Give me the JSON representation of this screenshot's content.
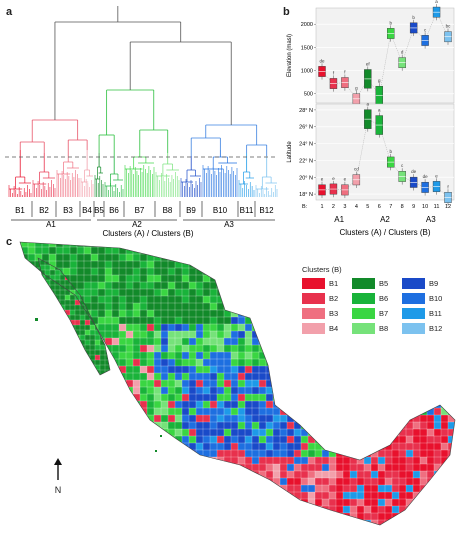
{
  "panels": {
    "a": "a",
    "b": "b",
    "c": "c"
  },
  "dendrogram": {
    "clusters_b": [
      "B1",
      "B2",
      "B3",
      "B4",
      "B5",
      "B6",
      "B7",
      "B8",
      "B9",
      "B10",
      "B11",
      "B12"
    ],
    "clusters_a": [
      "A1",
      "A2",
      "A3"
    ],
    "xlabel": "Clusters (A) / Clusters (B)"
  },
  "chart_data": [
    {
      "type": "box",
      "panel": "b-top",
      "ylabel": "Elevation (masl)",
      "yticks": [
        500,
        1000,
        1500,
        2000
      ],
      "ylim": [
        300,
        2350
      ],
      "x": [
        1,
        2,
        3,
        4,
        5,
        6,
        7,
        8,
        9,
        10,
        11,
        12
      ],
      "medians": [
        980,
        720,
        740,
        390,
        820,
        460,
        1800,
        1170,
        1920,
        1650,
        2260,
        1730
      ],
      "letters": [
        "de",
        "f",
        "f",
        "g",
        "ef",
        "g",
        "b",
        "d",
        "b",
        "c",
        "a",
        "bc"
      ],
      "colors": [
        "#e8112d",
        "#e8314d",
        "#ef6f80",
        "#f2a0ab",
        "#128a2a",
        "#19b33a",
        "#3ad642",
        "#76e27a",
        "#1a4ac8",
        "#1e6fe0",
        "#1e9ae8",
        "#7cc2ef"
      ]
    },
    {
      "type": "box",
      "panel": "b-bottom",
      "ylabel": "Latitude",
      "yticks": [
        "18° N",
        "20° N",
        "22° N",
        "24° N",
        "26° N",
        "28° N"
      ],
      "ylim": [
        17.3,
        28.7
      ],
      "x": [
        1,
        2,
        3,
        4,
        5,
        6,
        7,
        8,
        9,
        10,
        11,
        12
      ],
      "medians": [
        18.5,
        18.6,
        18.5,
        19.7,
        26.9,
        26.2,
        21.8,
        20.1,
        19.4,
        18.8,
        18.9,
        17.6
      ],
      "letters": [
        "e",
        "e",
        "e",
        "cd",
        "a",
        "a",
        "b",
        "c",
        "de",
        "de",
        "e",
        "f"
      ],
      "bcategories": [
        "1",
        "2",
        "3",
        "4",
        "5",
        "6",
        "7",
        "8",
        "9",
        "10",
        "11",
        "12"
      ],
      "b_label": "B:",
      "groups": [
        "A1",
        "A2",
        "A3"
      ],
      "xlabel": "Clusters (A) / Clusters (B)"
    }
  ],
  "legend": {
    "title": "Clusters (B)",
    "items": [
      {
        "label": "B1",
        "color": "#e8112d"
      },
      {
        "label": "B5",
        "color": "#128a2a"
      },
      {
        "label": "B9",
        "color": "#1a4ac8"
      },
      {
        "label": "B2",
        "color": "#e8314d"
      },
      {
        "label": "B6",
        "color": "#19b33a"
      },
      {
        "label": "B10",
        "color": "#1e6fe0"
      },
      {
        "label": "B3",
        "color": "#ef6f80"
      },
      {
        "label": "B7",
        "color": "#3ad642"
      },
      {
        "label": "B11",
        "color": "#1e9ae8"
      },
      {
        "label": "B4",
        "color": "#f2a0ab"
      },
      {
        "label": "B8",
        "color": "#76e27a"
      },
      {
        "label": "B12",
        "color": "#7cc2ef"
      }
    ]
  },
  "north": {
    "label": "N"
  }
}
